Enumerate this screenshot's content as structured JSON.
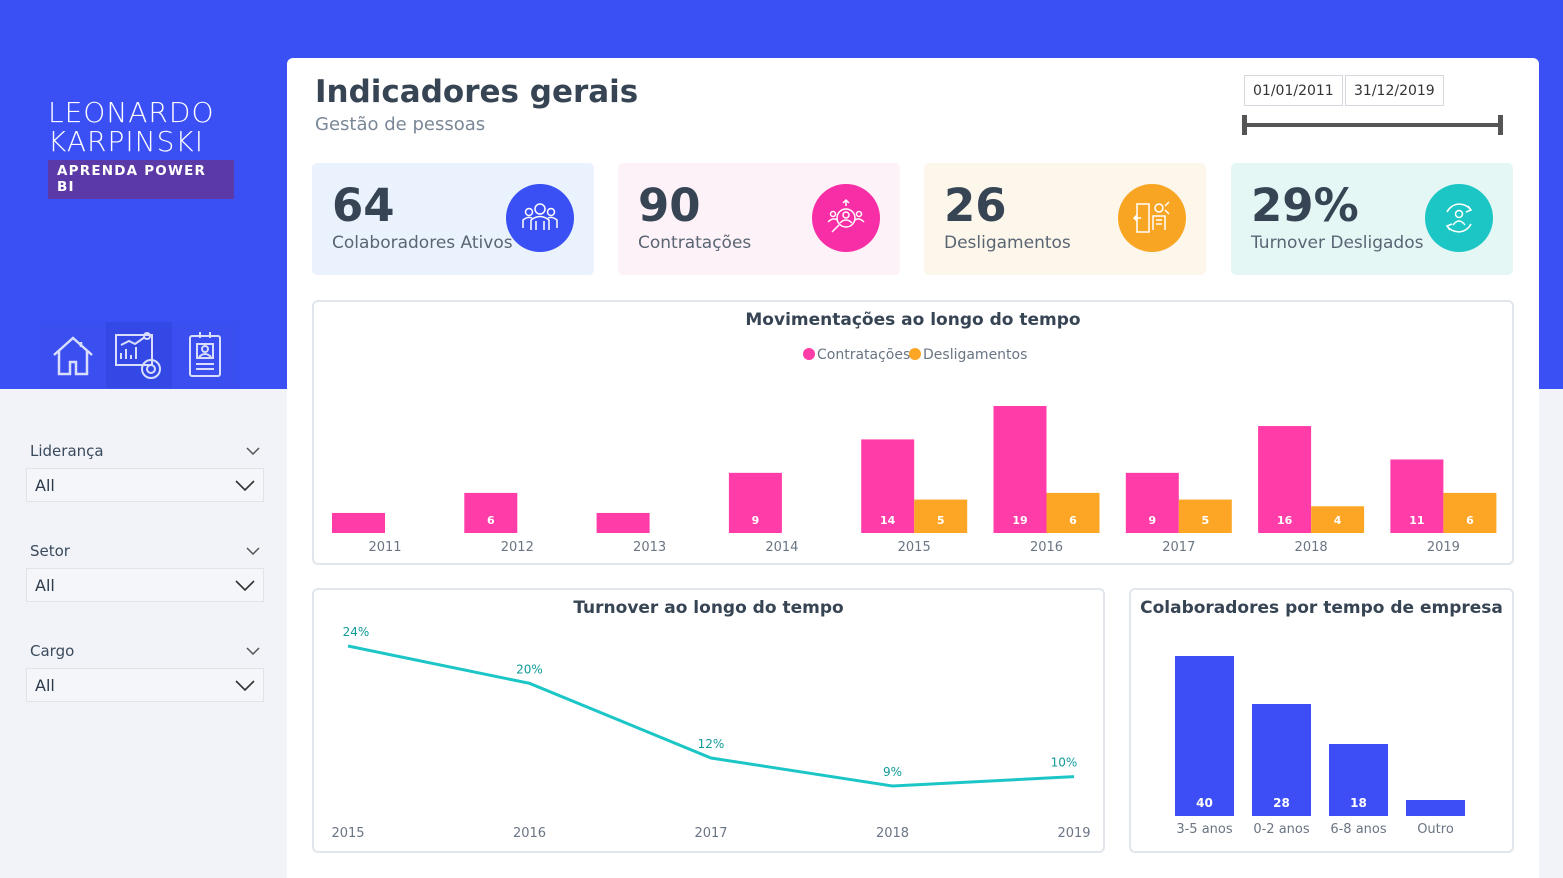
{
  "brand": {
    "line1": "LEONARDO",
    "line2": "KARPINSKI",
    "tagline": "APRENDA POWER BI"
  },
  "nav": [
    {
      "icon": "home-icon"
    },
    {
      "icon": "analytics-report-icon"
    },
    {
      "icon": "id-badge-icon"
    }
  ],
  "filters": [
    {
      "label": "Liderança",
      "value": "All"
    },
    {
      "label": "Setor",
      "value": "All"
    },
    {
      "label": "Cargo",
      "value": "All"
    }
  ],
  "header": {
    "title": "Indicadores gerais",
    "subtitle": "Gestão de pessoas",
    "date_start": "01/01/2011",
    "date_end": "31/12/2019"
  },
  "kpis": [
    {
      "value": "64",
      "label": "Colaboradores Ativos",
      "icon": "team-icon",
      "bg": "#eaf2fd",
      "icon_bg": "#3a4ff4"
    },
    {
      "value": "90",
      "label": "Contratações",
      "icon": "recruit-search-icon",
      "bg": "#fdf2f7",
      "icon_bg": "#f72ea6"
    },
    {
      "value": "26",
      "label": "Desligamentos",
      "icon": "exit-door-icon",
      "bg": "#fdf6ea",
      "icon_bg": "#f9a524"
    },
    {
      "value": "29%",
      "label": "Turnover Desligados",
      "icon": "turnover-cycle-icon",
      "bg": "#e4f7f5",
      "icon_bg": "#1cc6c4"
    }
  ],
  "colors": {
    "contratacoes": "#ff3ca8",
    "desligamentos": "#fda626",
    "turnover": "#1cc6c6",
    "tempo": "#3e4ef6",
    "blue_band": "#3a4ff4"
  },
  "chart_data": [
    {
      "type": "bar",
      "title": "Movimentações ao longo do tempo",
      "categories": [
        "2011",
        "2012",
        "2013",
        "2014",
        "2015",
        "2016",
        "2017",
        "2018",
        "2019"
      ],
      "series": [
        {
          "name": "Contratações",
          "values": [
            3,
            6,
            3,
            9,
            14,
            19,
            9,
            16,
            11
          ],
          "labels": [
            "",
            "6",
            "",
            "9",
            "14",
            "19",
            "9",
            "16",
            "11"
          ]
        },
        {
          "name": "Desligamentos",
          "values": [
            0,
            0,
            0,
            0,
            5,
            6,
            5,
            4,
            6
          ],
          "labels": [
            "",
            "",
            "",
            "",
            "5",
            "6",
            "5",
            "4",
            "6"
          ]
        }
      ],
      "ylim": [
        0,
        19
      ]
    },
    {
      "type": "line",
      "title": "Turnover ao longo do tempo",
      "categories": [
        "2015",
        "2016",
        "2017",
        "2018",
        "2019"
      ],
      "series": [
        {
          "values": [
            24,
            20,
            12,
            9,
            10
          ],
          "labels": [
            "24%",
            "20%",
            "12%",
            "9%",
            "10%"
          ]
        }
      ],
      "ylim": [
        0,
        25
      ]
    },
    {
      "type": "bar",
      "title": "Colaboradores por tempo de empresa",
      "categories": [
        "3-5 anos",
        "0-2 anos",
        "6-8 anos",
        "Outro"
      ],
      "series": [
        {
          "values": [
            40,
            28,
            18,
            4
          ],
          "labels": [
            "40",
            "28",
            "18",
            ""
          ]
        }
      ],
      "ylim": [
        0,
        40
      ]
    }
  ]
}
